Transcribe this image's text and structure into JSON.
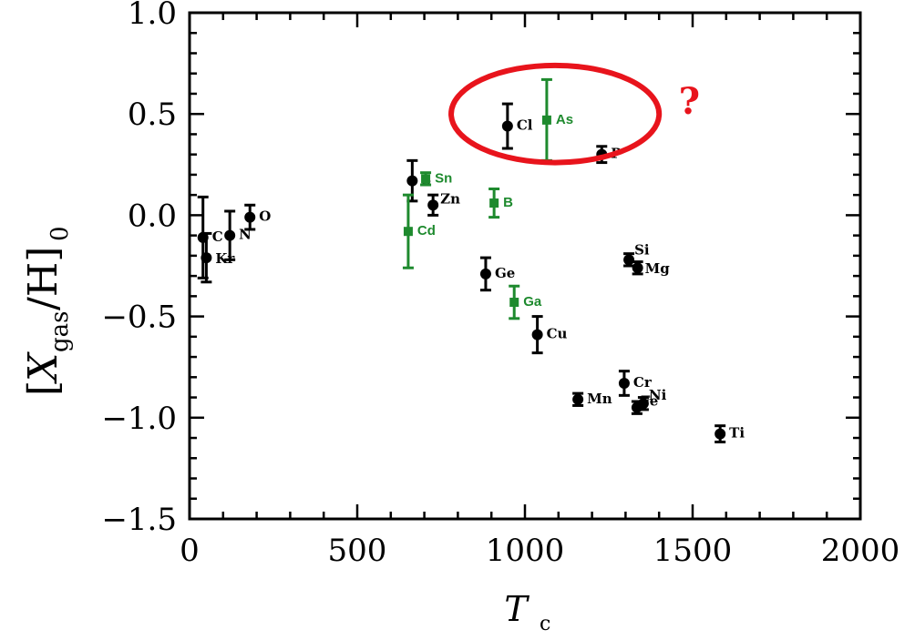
{
  "chart_data": {
    "type": "scatter",
    "xlabel": "T",
    "xlabel_sub": "c",
    "ylabel_parts": {
      "open": "[",
      "x": "X",
      "sub": "gas",
      "rest": "/H]",
      "outer_sub": "0"
    },
    "xlim": [
      0,
      2000
    ],
    "ylim": [
      -1.5,
      1.0
    ],
    "x_ticks": [
      0,
      500,
      1000,
      1500,
      2000
    ],
    "x_tick_labels": [
      "0",
      "500",
      "1000",
      "1500",
      "2000"
    ],
    "y_ticks": [
      1.0,
      0.5,
      0.0,
      -0.5,
      -1.0,
      -1.5
    ],
    "y_tick_labels": [
      "1.0",
      "0.5",
      "0.0",
      "−0.5",
      "−1.0",
      "−1.5"
    ],
    "grid": false,
    "annotation": "?",
    "highlight_color": "#e8141c",
    "colors": {
      "black": "#000000",
      "green": "#1e8a2e"
    },
    "series": [
      {
        "color": "black",
        "marker": "circle",
        "points": [
          {
            "label": "C",
            "x": 40,
            "y": -0.11,
            "err": 0.2
          },
          {
            "label": "Kr",
            "x": 50,
            "y": -0.21,
            "err": 0.12
          },
          {
            "label": "N",
            "x": 120,
            "y": -0.1,
            "err": 0.12
          },
          {
            "label": "O",
            "x": 180,
            "y": -0.01,
            "err": 0.06
          },
          {
            "label": "S",
            "x": 664,
            "y": 0.17,
            "err": 0.1
          },
          {
            "label": "Zn",
            "x": 726,
            "y": 0.05,
            "err": 0.05
          },
          {
            "label": "Ge",
            "x": 883,
            "y": -0.29,
            "err": 0.08
          },
          {
            "label": "Cl",
            "x": 948,
            "y": 0.44,
            "err": 0.11
          },
          {
            "label": "Cu",
            "x": 1037,
            "y": -0.59,
            "err": 0.09
          },
          {
            "label": "Mn",
            "x": 1158,
            "y": -0.91,
            "err": 0.03
          },
          {
            "label": "P",
            "x": 1229,
            "y": 0.3,
            "err": 0.04
          },
          {
            "label": "Cr",
            "x": 1296,
            "y": -0.83,
            "err": 0.06
          },
          {
            "label": "Si",
            "x": 1310,
            "y": -0.22,
            "err": 0.03
          },
          {
            "label": "Fe",
            "x": 1334,
            "y": -0.95,
            "err": 0.03
          },
          {
            "label": "Mg",
            "x": 1336,
            "y": -0.26,
            "err": 0.03
          },
          {
            "label": "Ni",
            "x": 1353,
            "y": -0.93,
            "err": 0.03
          },
          {
            "label": "Ti",
            "x": 1582,
            "y": -1.08,
            "err": 0.04
          }
        ]
      },
      {
        "color": "green",
        "marker": "square",
        "points": [
          {
            "label": "Cd",
            "x": 652,
            "y": -0.08,
            "err": 0.18
          },
          {
            "label": "Sn",
            "x": 704,
            "y": 0.18,
            "err": 0.03
          },
          {
            "label": "B",
            "x": 908,
            "y": 0.06,
            "err": 0.07
          },
          {
            "label": "Ga",
            "x": 968,
            "y": -0.43,
            "err": 0.08
          },
          {
            "label": "As",
            "x": 1065,
            "y": 0.47,
            "err": 0.2
          }
        ]
      }
    ]
  }
}
